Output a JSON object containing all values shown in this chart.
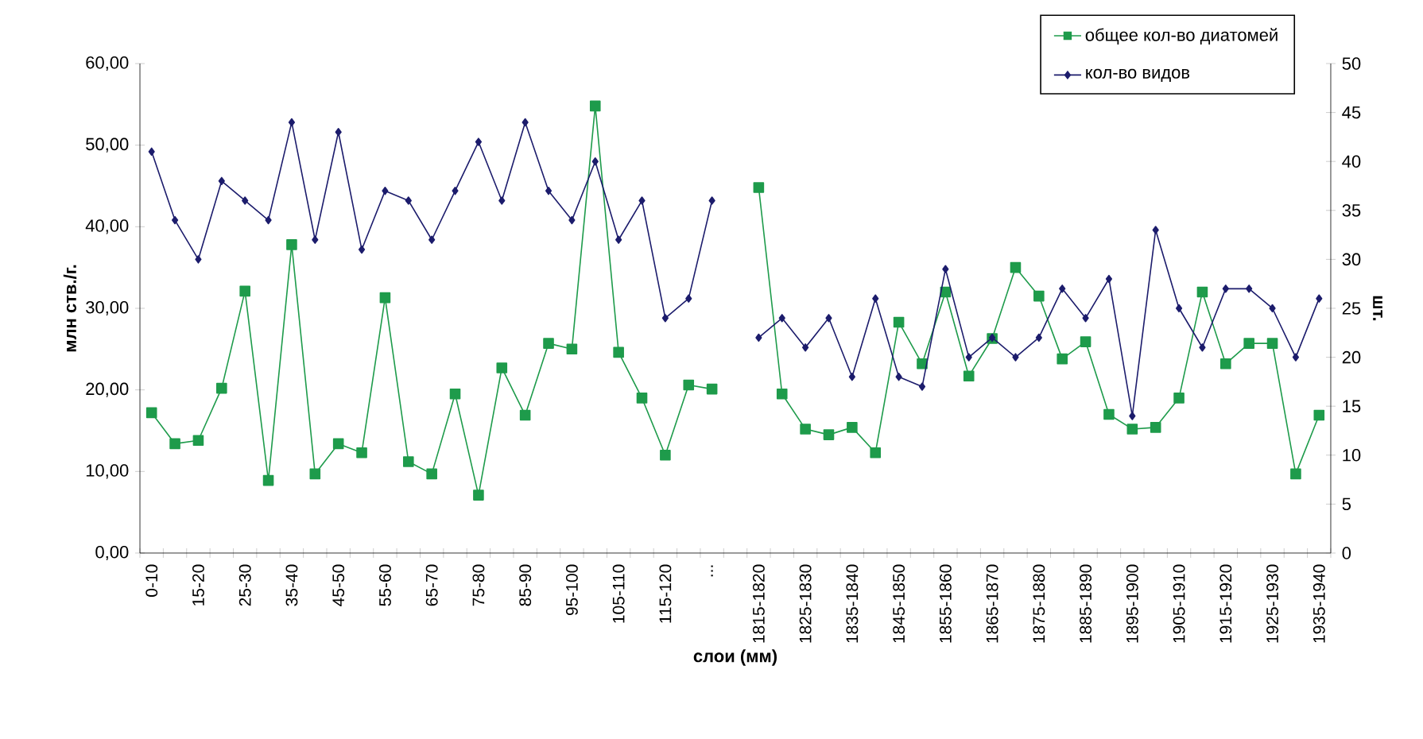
{
  "chart_data": {
    "type": "line",
    "xlabel": "слои (мм)",
    "ylabel": "млн ств./г.",
    "y2label": "шт.",
    "categories": [
      "0-10",
      null,
      "15-20",
      null,
      "25-30",
      null,
      "35-40",
      null,
      "45-50",
      null,
      "55-60",
      null,
      "65-70",
      null,
      "75-80",
      null,
      "85-90",
      null,
      "95-100",
      null,
      "105-110",
      null,
      "115-120",
      null,
      "...",
      null,
      "1815-1820",
      null,
      "1825-1830",
      null,
      "1835-1840",
      null,
      "1845-1850",
      null,
      "1855-1860",
      null,
      "1865-1870",
      null,
      "1875-1880",
      null,
      "1885-1890",
      null,
      "1895-1900",
      null,
      "1905-1910",
      null,
      "1915-1920",
      null,
      "1925-1930",
      null,
      "1935-1940"
    ],
    "series": [
      {
        "name": "общее кол-во диатомей",
        "color": "#1e9b4b",
        "marker": "square",
        "values": [
          17.2,
          13.4,
          13.8,
          20.2,
          32.1,
          8.9,
          37.8,
          9.7,
          13.4,
          12.3,
          31.3,
          11.2,
          9.7,
          19.5,
          7.1,
          22.7,
          16.9,
          25.7,
          25.0,
          54.8,
          24.6,
          19.0,
          12.0,
          20.6,
          20.1,
          null,
          44.8,
          19.5,
          15.2,
          14.5,
          15.4,
          12.3,
          28.3,
          23.2,
          32.0,
          21.7,
          26.3,
          35.0,
          31.5,
          23.8,
          25.9,
          17.0,
          15.2,
          15.4,
          19.0,
          32.0,
          23.2,
          25.7,
          25.7,
          9.7,
          16.9
        ]
      },
      {
        "name": "кол-во видов",
        "color": "#1c1c6c",
        "marker": "diamond",
        "axis": "y2",
        "values": [
          41,
          34,
          30,
          38,
          36,
          34,
          44,
          32,
          43,
          31,
          37,
          36,
          32,
          37,
          42,
          36,
          44,
          37,
          34,
          40,
          32,
          36,
          24,
          26,
          36,
          null,
          22,
          24,
          21,
          24,
          18,
          26,
          18,
          17,
          29,
          20,
          22,
          20,
          22,
          27,
          24,
          28,
          14,
          33,
          25,
          21,
          27,
          27,
          25,
          20,
          26
        ]
      }
    ],
    "ylim": [
      0,
      60
    ],
    "yticks": [
      {
        "value": 0,
        "label": "0,00"
      },
      {
        "value": 10,
        "label": "10,00"
      },
      {
        "value": 20,
        "label": "20,00"
      },
      {
        "value": 30,
        "label": "30,00"
      },
      {
        "value": 40,
        "label": "40,00"
      },
      {
        "value": 50,
        "label": "50,00"
      },
      {
        "value": 60,
        "label": "60,00"
      }
    ],
    "y2lim": [
      0,
      50
    ],
    "y2ticks": [
      0,
      5,
      10,
      15,
      20,
      25,
      30,
      35,
      40,
      45,
      50
    ],
    "legend": "top right",
    "line_style": "solid",
    "grid": false
  }
}
